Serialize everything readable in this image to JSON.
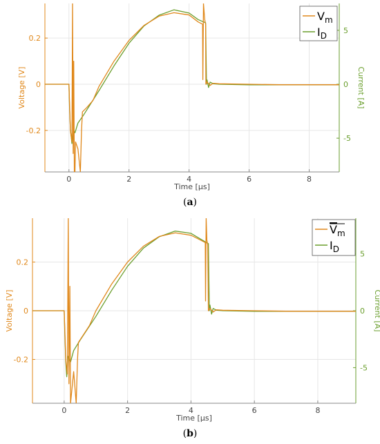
{
  "colors": {
    "voltage": "#E0881B",
    "current": "#6A9E2C",
    "grid": "#e6e6e6",
    "axis": "#888888"
  },
  "chart_data": [
    {
      "type": "line",
      "caption": "(a)",
      "xlabel": "Time [µs]",
      "ylabel_left": "Voltage [V]",
      "ylabel_right": "Current [A]",
      "xlim": [
        -0.8,
        9.0
      ],
      "ylim_left": [
        -0.38,
        0.35
      ],
      "ylim_right": [
        -8.13,
        7.49
      ],
      "xticks": [
        0,
        2,
        4,
        6,
        8
      ],
      "yticks_left": [
        -0.2,
        0,
        0.2
      ],
      "yticks_right": [
        -5,
        0,
        5
      ],
      "grid": true,
      "legend_position": "top-right",
      "series": [
        {
          "name": "Vm",
          "axis": "left",
          "x": [
            -0.8,
            0.0,
            0.05,
            0.1,
            0.12,
            0.14,
            0.16,
            0.18,
            0.2,
            0.22,
            0.3,
            0.38,
            0.42,
            0.45,
            0.6,
            0.8,
            1.0,
            1.5,
            2.0,
            2.5,
            3.0,
            3.5,
            4.0,
            4.3,
            4.45,
            4.46,
            4.48,
            4.52,
            4.55,
            4.56,
            4.6,
            4.7,
            4.8,
            5.0,
            6.0,
            7.0,
            8.0,
            9.0
          ],
          "y": [
            0.0,
            0.0,
            -0.2,
            -0.25,
            0.35,
            -0.3,
            0.1,
            -0.38,
            -0.38,
            -0.25,
            -0.28,
            -0.38,
            -0.2,
            -0.12,
            -0.1,
            -0.07,
            -0.01,
            0.1,
            0.19,
            0.255,
            0.295,
            0.31,
            0.3,
            0.27,
            0.26,
            0.02,
            0.35,
            0.28,
            0.26,
            0.0,
            0.01,
            -0.005,
            0.004,
            0.002,
            0.0,
            -0.002,
            -0.002,
            -0.002
          ]
        },
        {
          "name": "ID",
          "axis": "right",
          "x": [
            -0.8,
            0.0,
            0.02,
            0.05,
            0.1,
            0.15,
            0.2,
            0.3,
            0.5,
            1.0,
            1.5,
            2.0,
            2.5,
            3.0,
            3.5,
            4.0,
            4.3,
            4.55,
            4.58,
            4.6,
            4.65,
            4.7,
            4.8,
            5.0,
            6.0,
            7.0,
            8.0,
            9.0
          ],
          "y": [
            0.0,
            0.0,
            -2.0,
            -4.2,
            -5.5,
            -4.2,
            -4.5,
            -3.6,
            -2.8,
            -0.6,
            1.7,
            3.8,
            5.4,
            6.4,
            6.9,
            6.6,
            6.0,
            5.7,
            0.0,
            0.4,
            -0.3,
            0.2,
            0.05,
            0.0,
            -0.05,
            -0.05,
            -0.05,
            -0.05
          ]
        }
      ]
    },
    {
      "type": "line",
      "caption": "(b)",
      "xlabel": "Time [µs]",
      "ylabel_left": "Voltage [V]",
      "ylabel_right": "Current [A]",
      "xlim": [
        -1.0,
        9.2
      ],
      "ylim_left": [
        -0.38,
        0.38
      ],
      "ylim_right": [
        -8.13,
        8.13
      ],
      "xticks": [
        0,
        2,
        4,
        6,
        8
      ],
      "yticks_left": [
        -0.2,
        0,
        0.2
      ],
      "yticks_right": [
        -5,
        0,
        5
      ],
      "grid": true,
      "legend_position": "top-right",
      "series": [
        {
          "name": "Vm",
          "axis": "left",
          "x": [
            -1.0,
            0.0,
            0.05,
            0.1,
            0.13,
            0.15,
            0.18,
            0.2,
            0.3,
            0.38,
            0.42,
            0.45,
            0.6,
            0.8,
            1.0,
            1.5,
            2.0,
            2.5,
            3.0,
            3.5,
            4.0,
            4.3,
            4.45,
            4.46,
            4.48,
            4.5,
            4.53,
            4.55,
            4.6,
            4.7,
            4.8,
            5.0,
            6.0,
            7.0,
            8.0,
            9.2
          ],
          "y": [
            0.0,
            0.0,
            -0.2,
            -0.26,
            0.38,
            -0.3,
            0.1,
            -0.38,
            -0.25,
            -0.38,
            -0.2,
            -0.13,
            -0.1,
            -0.06,
            0.0,
            0.11,
            0.2,
            0.265,
            0.305,
            0.32,
            0.31,
            0.29,
            0.28,
            0.04,
            0.38,
            0.29,
            0.27,
            0.0,
            0.01,
            -0.005,
            0.004,
            0.002,
            0.0,
            -0.002,
            -0.002,
            -0.002
          ]
        },
        {
          "name": "ID",
          "axis": "right",
          "x": [
            -1.0,
            0.0,
            0.02,
            0.05,
            0.08,
            0.12,
            0.2,
            0.3,
            0.5,
            1.0,
            1.5,
            2.0,
            2.5,
            3.0,
            3.5,
            4.0,
            4.3,
            4.55,
            4.58,
            4.6,
            4.65,
            4.7,
            4.8,
            5.0,
            6.0,
            7.0,
            8.0,
            9.2
          ],
          "y": [
            0.0,
            0.0,
            -2.0,
            -4.5,
            -5.8,
            -4.0,
            -4.5,
            -3.5,
            -2.6,
            -0.5,
            1.8,
            3.9,
            5.5,
            6.5,
            7.0,
            6.8,
            6.3,
            5.9,
            0.0,
            0.5,
            -0.3,
            0.2,
            0.05,
            0.0,
            -0.05,
            -0.05,
            -0.05,
            -0.05
          ]
        }
      ]
    }
  ]
}
